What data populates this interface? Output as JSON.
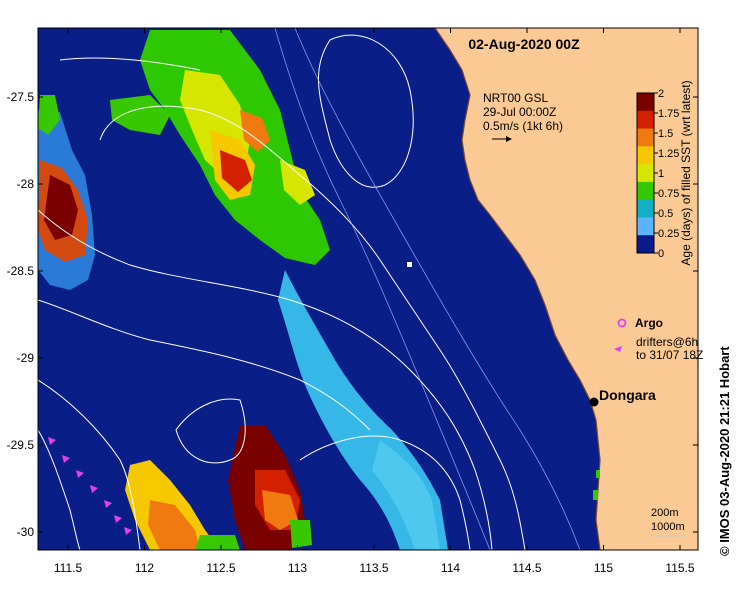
{
  "title": "02-Aug-2020 00Z",
  "overlay": {
    "line1": "NRT00 GSL",
    "line2": "29-Jul 00:00Z",
    "line3": "0.5m/s (1kt 6h)"
  },
  "colorbar": {
    "label": "Age (days) of filled SST (wrt latest)",
    "ticks": [
      "2",
      "1.75",
      "1.5",
      "1.25",
      "1",
      "0.75",
      "0.5",
      "0.25",
      "0"
    ],
    "colors": [
      "#7a0000",
      "#d22000",
      "#f07a10",
      "#f5c800",
      "#d6e600",
      "#38c800",
      "#12b0c8",
      "#5ab4ff",
      "#0a1a8c"
    ]
  },
  "legend": {
    "argo": "Argo",
    "drifters_line1": "drifters@6h",
    "drifters_line2": "to 31/07 18Z"
  },
  "place": {
    "name": "Dongara"
  },
  "contours": {
    "line1": "200m",
    "line2": "1000m"
  },
  "credit": "© IMOS 03-Aug-2020 21:21 Hobart",
  "axes": {
    "x_ticks": [
      "111.5",
      "112",
      "112.5",
      "113",
      "113.5",
      "114",
      "114.5",
      "115",
      "115.5"
    ],
    "y_ticks": [
      "-27.5",
      "-28",
      "-28.5",
      "-29",
      "-29.5",
      "-30"
    ]
  },
  "colors": {
    "ocean": "#0b1f8c",
    "land": "#fbc994",
    "argo": "#e040f0",
    "contour": "#ffffff"
  }
}
